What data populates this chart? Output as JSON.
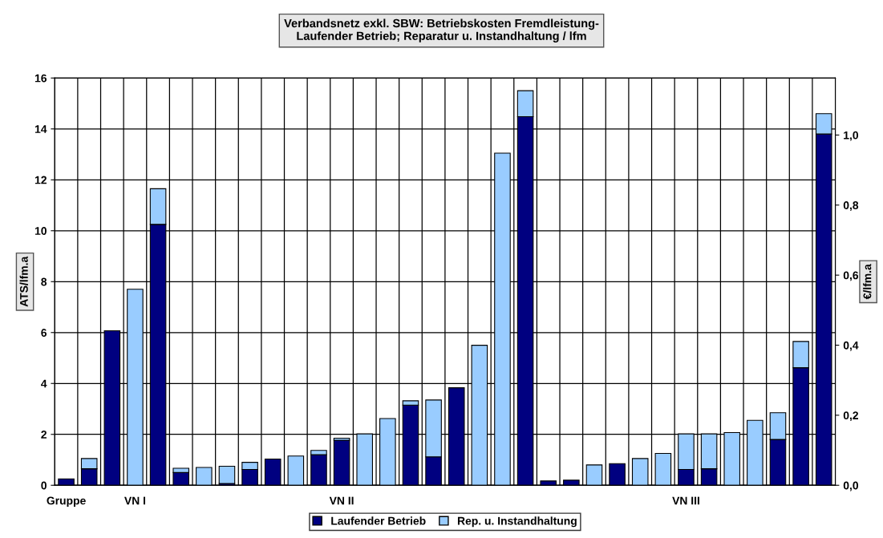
{
  "chart_data": {
    "type": "bar",
    "stacked": true,
    "title": "Verbandsnetz exkl. SBW: Betriebskosten Fremdleistung-\nLaufender Betrieb; Reparatur u. Instandhaltung / lfm",
    "ylabel": "ATS/lfm.a",
    "y2label": "€/lfm.a",
    "categories": [
      "Gruppe",
      null,
      null,
      "VN I",
      null,
      null,
      null,
      null,
      null,
      null,
      null,
      null,
      "VN II",
      null,
      null,
      null,
      null,
      null,
      null,
      null,
      null,
      null,
      null,
      null,
      null,
      null,
      null,
      "VN III",
      null,
      null,
      null,
      null,
      null,
      null
    ],
    "series": [
      {
        "name": "Laufender Betrieb",
        "color": "#000080",
        "values": [
          0.25,
          0.65,
          6.07,
          null,
          10.25,
          0.5,
          null,
          0.07,
          0.62,
          1.03,
          null,
          1.2,
          1.77,
          null,
          null,
          3.15,
          1.12,
          3.83,
          null,
          null,
          14.48,
          0.17,
          0.2,
          null,
          0.85,
          null,
          null,
          0.62,
          0.65,
          null,
          null,
          1.8,
          4.62,
          13.8
        ]
      },
      {
        "name": "Rep. u. Instandhaltung",
        "color": "#99ccff",
        "values": [
          null,
          0.4,
          null,
          7.7,
          1.4,
          0.17,
          0.7,
          0.68,
          0.28,
          null,
          1.15,
          0.17,
          0.08,
          2.02,
          2.62,
          0.17,
          2.23,
          null,
          5.5,
          13.05,
          1.02,
          null,
          null,
          0.8,
          null,
          1.05,
          1.25,
          1.4,
          1.37,
          2.07,
          2.55,
          1.05,
          1.03,
          0.8
        ]
      }
    ],
    "ylim": [
      0,
      16
    ],
    "yticks": [
      0,
      2,
      4,
      6,
      8,
      10,
      12,
      14,
      16
    ],
    "y2lim": [
      0,
      1.1628
    ],
    "y2ticks": [
      {
        "value": 0,
        "label": "0,0"
      },
      {
        "value": 0.2,
        "label": "0,2"
      },
      {
        "value": 0.4,
        "label": "0,4"
      },
      {
        "value": 0.6,
        "label": "0,6"
      },
      {
        "value": 0.8,
        "label": "0,8"
      },
      {
        "value": 1.0,
        "label": "1,0"
      }
    ],
    "grid": true,
    "legend": "bottom"
  }
}
